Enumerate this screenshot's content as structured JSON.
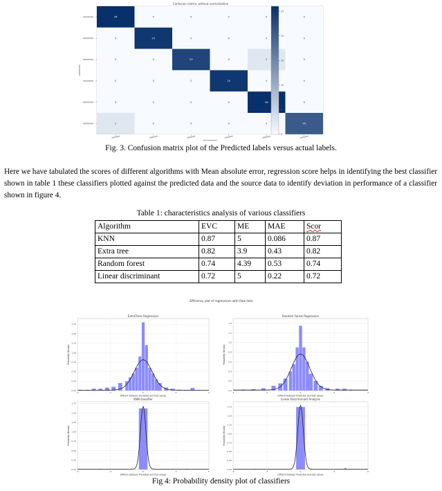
{
  "fig3": {
    "panel_title": "Confusion matrix, without normalization",
    "caption": "Fig. 3. Confusion matrix plot of the Predicted labels versus actual labels."
  },
  "paragraph": "Here we have tabulated the scores of different algorithms with Mean absolute error, regression score helps in identifying the best classifier shown in table 1 these classifiers plotted against the predicted data and the source data to identify deviation in performance of a classifier shown in figure 4.",
  "table1": {
    "caption": "Table 1: characteristics analysis of various classifiers",
    "headers": [
      "Algorithm",
      "EVC",
      "ME",
      "MAE",
      "Scor"
    ],
    "rows": [
      [
        "KNN",
        "0.87",
        "5",
        "0.086",
        "0.87"
      ],
      [
        "Extra tree",
        "0.82",
        "3.9",
        "0.43",
        "0.82"
      ],
      [
        "Random forest",
        "0.74",
        "4.39",
        "0.53",
        "0.74"
      ],
      [
        "Linear discriminant",
        "0.72",
        "5",
        "0.22",
        "0.72"
      ]
    ]
  },
  "fig4": {
    "caption": "Fig 4: Probability density plot of classifiers"
  },
  "chart_data": [
    {
      "type": "heatmap",
      "title": "Confusion matrix, without normalization",
      "matrix": [
        [
          26,
          0,
          0,
          0,
          0,
          0
        ],
        [
          0,
          25,
          0,
          0,
          0,
          0
        ],
        [
          0,
          0,
          23,
          0,
          2,
          0
        ],
        [
          0,
          0,
          0,
          25,
          0,
          0
        ],
        [
          0,
          0,
          0,
          0,
          26,
          0
        ],
        [
          2,
          0,
          0,
          0,
          0,
          20
        ]
      ],
      "colorbar": {
        "min": 0,
        "max": 26,
        "ticks": [
          0,
          5,
          10,
          15,
          20,
          25
        ]
      },
      "colormap": {
        "low": "#f7fbff",
        "high": "#08306b"
      }
    },
    {
      "type": "area",
      "title": "ExtraTrees Regression",
      "xlim": [
        -4,
        4
      ],
      "ylim": [
        0,
        1.9
      ],
      "yticks": [
        0.0,
        0.25,
        0.5,
        0.75,
        1.0,
        1.25,
        1.5,
        1.75
      ],
      "x": [
        -3.8,
        -3.4,
        -3.0,
        -2.6,
        -2.2,
        -1.8,
        -1.4,
        -1.0,
        -0.8,
        -0.6,
        -0.4,
        -0.2,
        0.0,
        0.2,
        0.4,
        0.6,
        0.8,
        1.0,
        1.4,
        1.8,
        2.2,
        2.6,
        3.0,
        3.4
      ],
      "values": [
        0.02,
        0.02,
        0.05,
        0.05,
        0.08,
        0.1,
        0.2,
        0.25,
        0.35,
        0.45,
        0.6,
        0.9,
        1.8,
        1.2,
        0.6,
        0.45,
        0.3,
        0.2,
        0.08,
        0.05,
        0.02,
        0.02,
        0.07,
        0.02
      ],
      "kde_peak": 0.8,
      "bar_color": "#8c8cff"
    },
    {
      "type": "area",
      "title": "Random Forest Regression",
      "xlim": [
        -4,
        4
      ],
      "ylim": [
        0,
        1.5
      ],
      "yticks": [
        0.0,
        0.2,
        0.4,
        0.6,
        0.8,
        1.0,
        1.2,
        1.4
      ],
      "x": [
        -3.4,
        -2.8,
        -2.2,
        -1.6,
        -1.2,
        -0.9,
        -0.6,
        -0.4,
        -0.2,
        0.0,
        0.2,
        0.4,
        0.6,
        0.9,
        1.2,
        1.6,
        2.2,
        2.6,
        3.0
      ],
      "values": [
        0.02,
        0.03,
        0.05,
        0.1,
        0.15,
        0.25,
        0.4,
        0.55,
        0.9,
        1.35,
        0.9,
        0.6,
        0.35,
        0.2,
        0.1,
        0.05,
        0.04,
        0.04,
        0.02
      ],
      "kde_peak": 0.75,
      "bar_color": "#8c8cff"
    },
    {
      "type": "area",
      "title": "KNN classifier",
      "xlim": [
        -6,
        6
      ],
      "ylim": [
        0,
        1.8
      ],
      "yticks": [
        0.0,
        0.25,
        0.5,
        0.75,
        1.0,
        1.25,
        1.5,
        1.75
      ],
      "x": [
        -4,
        -0.3,
        0,
        0.3,
        4
      ],
      "values": [
        0.02,
        1.62,
        1.62,
        1.62,
        0.02
      ],
      "kde_peak": 1.66,
      "bar_color": "#8c8cff"
    },
    {
      "type": "area",
      "title": "Linear Discriminant Analysis",
      "xlim": [
        -6,
        6
      ],
      "ylim": [
        0,
        1.9
      ],
      "yticks": [
        0.0,
        0.25,
        0.5,
        0.75,
        1.0,
        1.25,
        1.5,
        1.75
      ],
      "x": [
        -4,
        -0.3,
        0,
        0.3,
        4
      ],
      "values": [
        0.02,
        1.75,
        1.75,
        1.75,
        0.04
      ],
      "kde_peak": 1.78,
      "bar_color": "#8c8cff"
    }
  ],
  "fig4_panel_texts": {
    "suptitle": "Efficiency plot of regressions with Raw data",
    "xlabel": "Diffrent between Predicted and test values",
    "ylabel": "Probability Density"
  }
}
